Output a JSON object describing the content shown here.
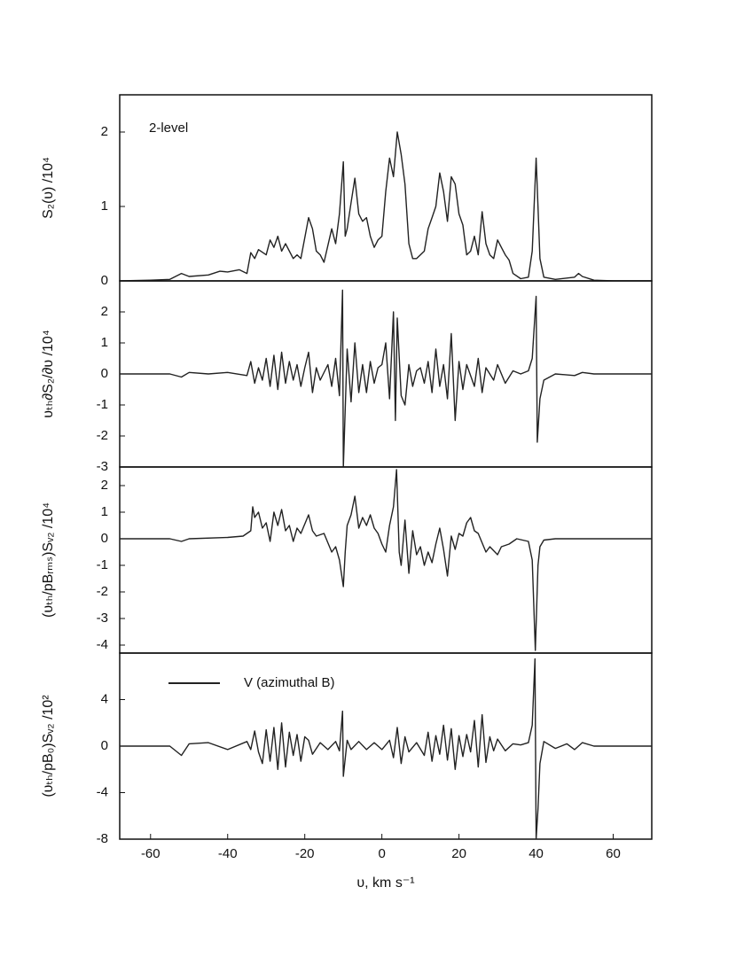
{
  "chart_data": [
    {
      "type": "line",
      "y_label": "S₂(υ) /10⁴",
      "annotation": "2-level",
      "xlim": [
        -68,
        70
      ],
      "ylim": [
        0,
        2.5
      ],
      "yticks": [
        0,
        1,
        2
      ],
      "x": [
        -68,
        -60,
        -55,
        -52,
        -50,
        -45,
        -42,
        -40,
        -37,
        -35,
        -34,
        -33,
        -32,
        -30,
        -29,
        -28,
        -27,
        -26,
        -25,
        -23,
        -22,
        -21,
        -19,
        -18,
        -17,
        -16,
        -15,
        -13,
        -12,
        -11,
        -10,
        -9.5,
        -9,
        -8,
        -7,
        -6,
        -5,
        -4,
        -3,
        -2,
        -1,
        0,
        1,
        2,
        3,
        4,
        5,
        6,
        7,
        8,
        9,
        10,
        11,
        12,
        13,
        14,
        15,
        16,
        17,
        18,
        19,
        20,
        21,
        22,
        23,
        24,
        25,
        26,
        27,
        28,
        29,
        30,
        31,
        32,
        33,
        34,
        36,
        38,
        39,
        40,
        40.5,
        41,
        42,
        45,
        50,
        51,
        52,
        55,
        60,
        70
      ],
      "series": [
        {
          "color": "#222222",
          "values": [
            0,
            0.01,
            0.02,
            0.1,
            0.06,
            0.08,
            0.13,
            0.12,
            0.15,
            0.1,
            0.38,
            0.3,
            0.42,
            0.35,
            0.55,
            0.45,
            0.6,
            0.4,
            0.5,
            0.3,
            0.35,
            0.3,
            0.85,
            0.7,
            0.4,
            0.35,
            0.25,
            0.7,
            0.5,
            0.9,
            1.6,
            0.6,
            0.7,
            1.05,
            1.38,
            0.9,
            0.8,
            0.85,
            0.6,
            0.45,
            0.55,
            0.6,
            1.2,
            1.65,
            1.4,
            2.0,
            1.7,
            1.3,
            0.5,
            0.3,
            0.3,
            0.35,
            0.4,
            0.7,
            0.85,
            1.0,
            1.45,
            1.2,
            0.8,
            1.4,
            1.3,
            0.9,
            0.75,
            0.35,
            0.4,
            0.6,
            0.35,
            0.93,
            0.5,
            0.35,
            0.3,
            0.55,
            0.45,
            0.35,
            0.28,
            0.1,
            0.03,
            0.05,
            0.4,
            1.65,
            1.0,
            0.3,
            0.05,
            0.02,
            0.05,
            0.1,
            0.06,
            0.01,
            0,
            0
          ]
        }
      ]
    },
    {
      "type": "line",
      "y_label": "υₜₕ∂S₂/∂υ /10⁴",
      "xlim": [
        -68,
        70
      ],
      "ylim": [
        -3,
        3
      ],
      "yticks": [
        -3,
        -2,
        -1,
        0,
        1,
        2
      ],
      "x": [
        -68,
        -55,
        -52,
        -50,
        -45,
        -40,
        -35,
        -34,
        -33,
        -32,
        -31,
        -30,
        -29,
        -28,
        -27,
        -26,
        -25,
        -24,
        -23,
        -22,
        -21,
        -20,
        -19,
        -18,
        -17,
        -16,
        -14,
        -13,
        -12,
        -11,
        -10.2,
        -10,
        -9,
        -8,
        -7,
        -6,
        -5,
        -4,
        -3,
        -2,
        -1,
        0,
        1,
        2,
        3,
        3.5,
        4,
        5,
        6,
        7,
        8,
        9,
        10,
        11,
        12,
        13,
        14,
        15,
        16,
        17,
        18,
        19,
        20,
        21,
        22,
        24,
        25,
        26,
        27,
        29,
        30,
        32,
        34,
        36,
        38,
        39,
        40,
        40.3,
        41,
        42,
        45,
        50,
        52,
        55,
        70
      ],
      "series": [
        {
          "color": "#222222",
          "values": [
            0,
            0,
            -0.1,
            0.05,
            0,
            0.05,
            -0.05,
            0.4,
            -0.3,
            0.2,
            -0.2,
            0.5,
            -0.4,
            0.6,
            -0.5,
            0.7,
            -0.3,
            0.4,
            -0.2,
            0.3,
            -0.4,
            0.2,
            0.7,
            -0.6,
            0.2,
            -0.2,
            0.3,
            -0.4,
            0.5,
            -0.7,
            2.7,
            -3,
            0.8,
            -0.9,
            1.0,
            -0.6,
            0.3,
            -0.6,
            0.4,
            -0.3,
            0.2,
            0.3,
            1.0,
            -0.8,
            2.0,
            -1.5,
            1.8,
            -0.7,
            -1.0,
            0.3,
            -0.4,
            0.1,
            0.2,
            -0.3,
            0.4,
            -0.6,
            0.8,
            -0.4,
            0.3,
            -0.8,
            1.3,
            -1.5,
            0.4,
            -0.5,
            0.3,
            -0.4,
            0.5,
            -0.6,
            0.2,
            -0.2,
            0.3,
            -0.3,
            0.1,
            0,
            0.1,
            0.5,
            2.5,
            -2.2,
            -0.8,
            -0.2,
            0,
            -0.05,
            0.05,
            0,
            0
          ]
        }
      ]
    },
    {
      "type": "line",
      "y_label": "(υₜₕ/pBᵣₘₛ)Sᵥ₂ /10⁴",
      "xlim": [
        -68,
        70
      ],
      "ylim": [
        -4.3,
        2.7
      ],
      "yticks": [
        -4,
        -3,
        -2,
        -1,
        0,
        1,
        2
      ],
      "x": [
        -68,
        -55,
        -52,
        -50,
        -40,
        -36,
        -34,
        -33.5,
        -33,
        -32,
        -31,
        -30,
        -29,
        -28,
        -27,
        -26,
        -25,
        -24,
        -23,
        -22,
        -21,
        -19,
        -18,
        -17,
        -15,
        -13,
        -12,
        -11,
        -10,
        -9.5,
        -9,
        -8,
        -7,
        -6,
        -5,
        -4,
        -3,
        -2,
        -1,
        0,
        1,
        2,
        3,
        3.8,
        4.5,
        5,
        6,
        7,
        8,
        9,
        10,
        11,
        12,
        13,
        14,
        15,
        16,
        17,
        18,
        19,
        20,
        21,
        22,
        23,
        24,
        25,
        27,
        28,
        30,
        31,
        33,
        35,
        38,
        39,
        39.8,
        40.5,
        41,
        42,
        45,
        70
      ],
      "series": [
        {
          "color": "#222222",
          "values": [
            0,
            0,
            -0.1,
            0,
            0.05,
            0.1,
            0.3,
            1.2,
            0.8,
            1.0,
            0.4,
            0.6,
            -0.1,
            1.0,
            0.5,
            1.1,
            0.3,
            0.5,
            -0.1,
            0.4,
            0.2,
            0.9,
            0.3,
            0.1,
            0.2,
            -0.5,
            -0.3,
            -0.8,
            -1.8,
            -0.5,
            0.5,
            0.9,
            1.6,
            0.4,
            0.8,
            0.5,
            0.9,
            0.4,
            0.2,
            -0.2,
            -0.5,
            0.5,
            1.2,
            2.6,
            -0.5,
            -1.0,
            0.7,
            -1.3,
            0.3,
            -0.6,
            -0.3,
            -1.0,
            -0.5,
            -0.9,
            -0.2,
            0.4,
            -0.4,
            -1.4,
            0.1,
            -0.4,
            0.2,
            0.1,
            0.6,
            0.8,
            0.3,
            0.2,
            -0.5,
            -0.3,
            -0.6,
            -0.3,
            -0.2,
            0,
            -0.1,
            -0.8,
            -4.2,
            -1.0,
            -0.3,
            -0.05,
            0,
            0
          ]
        }
      ]
    },
    {
      "type": "line",
      "y_label": "(υₜₕ/pB₀)Sᵥ₂ /10²",
      "x_label": "υ, km s⁻¹",
      "legend": "upper left",
      "xlim": [
        -68,
        70
      ],
      "xticks": [
        -60,
        -40,
        -20,
        0,
        20,
        40,
        60
      ],
      "ylim": [
        -8,
        8
      ],
      "yticks": [
        -8,
        -4,
        0,
        4
      ],
      "x": [
        -68,
        -55,
        -52,
        -50,
        -45,
        -40,
        -35,
        -34,
        -33,
        -32,
        -31,
        -30,
        -29,
        -28,
        -27,
        -26,
        -25,
        -24,
        -23,
        -22,
        -21,
        -20,
        -19,
        -18,
        -16,
        -14,
        -12,
        -11,
        -10.2,
        -10,
        -9,
        -8,
        -6,
        -4,
        -2,
        0,
        2,
        3,
        4,
        5,
        6,
        7,
        9,
        11,
        12,
        13,
        14,
        15,
        16,
        17,
        18,
        19,
        20,
        21,
        22,
        23,
        24,
        25,
        26,
        27,
        28,
        29,
        30,
        32,
        34,
        36,
        38,
        39,
        39.7,
        40,
        40.5,
        41,
        42,
        45,
        48,
        50,
        52,
        55,
        70
      ],
      "series": [
        {
          "name": "V (azimuthal B)",
          "color": "#222222",
          "values": [
            0,
            0,
            -0.8,
            0.2,
            0.3,
            -0.3,
            0.4,
            -0.3,
            1.3,
            -0.5,
            -1.5,
            1.4,
            -1.3,
            1.6,
            -2.0,
            2.0,
            -1.8,
            1.2,
            -0.8,
            1.0,
            -1.3,
            0.8,
            0.5,
            -0.7,
            0.3,
            -0.3,
            0.4,
            -0.4,
            3.0,
            -2.6,
            0.5,
            -0.3,
            0.4,
            -0.3,
            0.3,
            -0.3,
            0.5,
            -1.0,
            1.6,
            -1.5,
            0.8,
            -0.5,
            0.3,
            -0.8,
            1.2,
            -1.3,
            0.9,
            -0.7,
            1.8,
            -1.2,
            1.5,
            -2.0,
            0.9,
            -0.9,
            1.0,
            -0.5,
            2.2,
            -1.8,
            2.7,
            -1.4,
            0.8,
            -0.4,
            0.6,
            -0.4,
            0.2,
            0.1,
            0.3,
            1.8,
            7.5,
            -8.0,
            -5.4,
            -1.5,
            0.4,
            -0.2,
            0.2,
            -0.3,
            0.3,
            0,
            0
          ]
        }
      ]
    }
  ]
}
